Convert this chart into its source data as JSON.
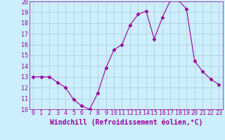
{
  "x": [
    0,
    1,
    2,
    3,
    4,
    5,
    6,
    7,
    8,
    9,
    10,
    11,
    12,
    13,
    14,
    15,
    16,
    17,
    18,
    19,
    20,
    21,
    22,
    23
  ],
  "y": [
    13,
    13,
    13,
    12.5,
    12,
    10.9,
    10.3,
    10,
    11.5,
    13.8,
    15.5,
    16,
    17.8,
    18.8,
    19.1,
    16.5,
    18.5,
    20.1,
    20.1,
    19.3,
    14.5,
    13.5,
    12.8,
    12.3
  ],
  "line_color": "#990099",
  "marker": "D",
  "marker_size": 2.5,
  "bg_color": "#cceeff",
  "grid_color": "#aacccc",
  "xlabel": "Windchill (Refroidissement éolien,°C)",
  "xlabel_color": "#990099",
  "xlabel_fontsize": 7,
  "tick_color": "#990099",
  "tick_fontsize": 6,
  "ylim": [
    10,
    20
  ],
  "xlim": [
    -0.5,
    23.5
  ],
  "yticks": [
    10,
    11,
    12,
    13,
    14,
    15,
    16,
    17,
    18,
    19,
    20
  ],
  "xticks": [
    0,
    1,
    2,
    3,
    4,
    5,
    6,
    7,
    8,
    9,
    10,
    11,
    12,
    13,
    14,
    15,
    16,
    17,
    18,
    19,
    20,
    21,
    22,
    23
  ],
  "xtick_labels": [
    "0",
    "1",
    "2",
    "3",
    "4",
    "5",
    "6",
    "7",
    "8",
    "9",
    "10",
    "11",
    "12",
    "13",
    "14",
    "15",
    "16",
    "17",
    "18",
    "19",
    "20",
    "21",
    "22",
    "23"
  ]
}
